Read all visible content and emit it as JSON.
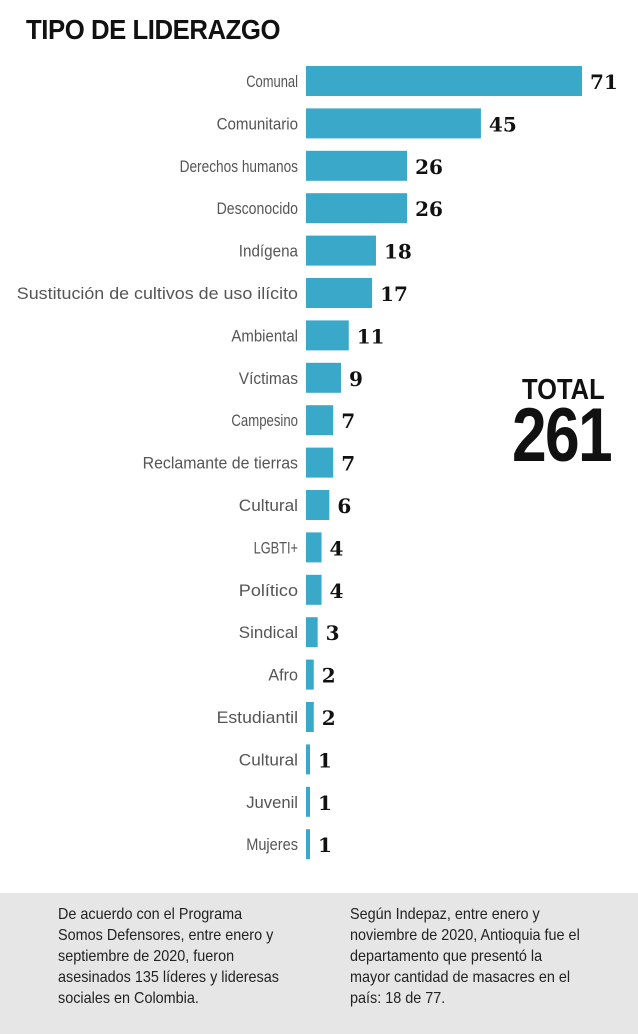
{
  "chart_data": {
    "type": "bar",
    "orientation": "horizontal",
    "title": "TIPO DE LIDERAZGO",
    "categories": [
      "Comunal",
      "Comunitario",
      "Derechos humanos",
      "Desconocido",
      "Indígena",
      "Sustitución de cultivos de uso ilícito",
      "Ambiental",
      "Víctimas",
      "Campesino",
      "Reclamante de tierras",
      "Cultural",
      "LGBTI+",
      "Político",
      "Sindical",
      "Afro",
      "Estudiantil",
      "Cultural",
      "Juvenil",
      "Mujeres"
    ],
    "values": [
      71,
      45,
      26,
      26,
      18,
      17,
      11,
      9,
      7,
      7,
      6,
      4,
      4,
      3,
      2,
      2,
      1,
      1,
      1
    ],
    "bar_color": "#3aa8c9",
    "data_labels": true
  },
  "total": {
    "label": "TOTAL",
    "value": "261"
  },
  "notes": {
    "left": "De acuerdo con el Programa Somos Defensores, entre enero y septiembre de 2020, fueron asesinados 135 líderes y lideresas sociales en Colombia.",
    "right": "Según Indepaz, entre enero y noviembre de 2020, Antioquia fue el departamento que presentó la mayor cantidad de masacres en el país: 18 de 77."
  }
}
